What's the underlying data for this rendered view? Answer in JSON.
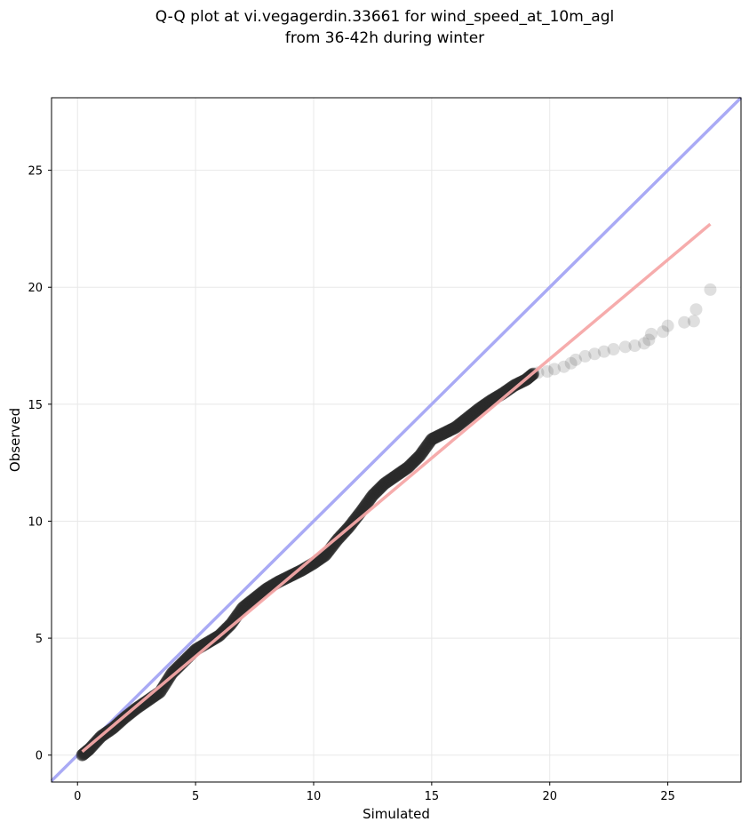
{
  "chart_data": {
    "type": "scatter",
    "title_lines": [
      "Q-Q plot at vi.vegagerdin.33661 for wind_speed_at_10m_agl",
      "from 36-42h during winter"
    ],
    "xlabel": "Simulated",
    "ylabel": "Observed",
    "xlim": [
      -1.1,
      28.1
    ],
    "ylim": [
      -1.15,
      28.1
    ],
    "xticks": [
      0,
      5,
      10,
      15,
      20,
      25
    ],
    "yticks": [
      0,
      5,
      10,
      15,
      20,
      25
    ],
    "grid": true,
    "colors": {
      "points": "#2a2a2a",
      "identity_line": "#a9aaf5",
      "fit_line": "#f5a8a8",
      "grid": "#e8e8e8"
    },
    "identity_line": {
      "from": [
        -1.1,
        -1.1
      ],
      "to": [
        28.1,
        28.1
      ]
    },
    "fit_line": {
      "from": [
        0.2,
        0.15
      ],
      "to": [
        26.8,
        22.7
      ]
    },
    "quantile_curve": [
      [
        0.2,
        0.0
      ],
      [
        0.5,
        0.25
      ],
      [
        1.0,
        0.8
      ],
      [
        1.5,
        1.15
      ],
      [
        2.0,
        1.6
      ],
      [
        2.5,
        2.0
      ],
      [
        3.0,
        2.35
      ],
      [
        3.5,
        2.7
      ],
      [
        4.0,
        3.5
      ],
      [
        4.5,
        4.0
      ],
      [
        5.0,
        4.5
      ],
      [
        5.5,
        4.8
      ],
      [
        6.0,
        5.1
      ],
      [
        6.5,
        5.6
      ],
      [
        7.0,
        6.3
      ],
      [
        7.5,
        6.7
      ],
      [
        8.0,
        7.1
      ],
      [
        8.5,
        7.4
      ],
      [
        9.0,
        7.65
      ],
      [
        9.5,
        7.9
      ],
      [
        10.0,
        8.2
      ],
      [
        10.5,
        8.55
      ],
      [
        11.0,
        9.2
      ],
      [
        11.5,
        9.75
      ],
      [
        12.0,
        10.4
      ],
      [
        12.5,
        11.1
      ],
      [
        13.0,
        11.6
      ],
      [
        13.5,
        11.95
      ],
      [
        14.0,
        12.3
      ],
      [
        14.5,
        12.8
      ],
      [
        15.0,
        13.5
      ],
      [
        15.5,
        13.75
      ],
      [
        16.0,
        14.0
      ],
      [
        16.5,
        14.4
      ],
      [
        17.0,
        14.8
      ],
      [
        17.5,
        15.15
      ],
      [
        18.0,
        15.45
      ],
      [
        18.5,
        15.8
      ],
      [
        19.0,
        16.05
      ],
      [
        19.3,
        16.3
      ]
    ],
    "tail_points": [
      [
        19.5,
        16.35
      ],
      [
        19.9,
        16.4
      ],
      [
        20.2,
        16.5
      ],
      [
        20.6,
        16.6
      ],
      [
        20.9,
        16.75
      ],
      [
        21.1,
        16.9
      ],
      [
        21.5,
        17.05
      ],
      [
        21.9,
        17.15
      ],
      [
        22.3,
        17.25
      ],
      [
        22.7,
        17.35
      ],
      [
        23.2,
        17.45
      ],
      [
        23.6,
        17.5
      ],
      [
        24.0,
        17.6
      ],
      [
        24.2,
        17.75
      ],
      [
        24.3,
        18.0
      ],
      [
        24.8,
        18.1
      ],
      [
        25.0,
        18.35
      ],
      [
        25.7,
        18.5
      ],
      [
        26.1,
        18.55
      ],
      [
        26.2,
        19.05
      ],
      [
        26.8,
        19.9
      ]
    ]
  }
}
